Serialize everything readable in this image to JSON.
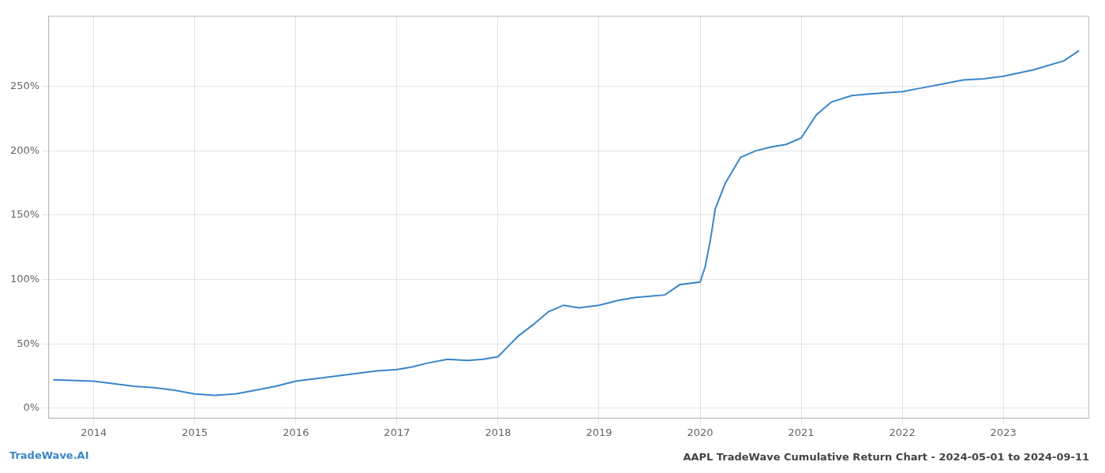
{
  "chart_data": {
    "type": "line",
    "title": "AAPL TradeWave Cumulative Return Chart - 2024-05-01 to 2024-09-11",
    "annotations": [
      "TradeWave.AI"
    ],
    "color": "#3a86c8",
    "grid": true,
    "x": [
      2013.6,
      2014.0,
      2014.2,
      2014.4,
      2014.6,
      2014.8,
      2015.0,
      2015.2,
      2015.4,
      2015.6,
      2015.8,
      2016.0,
      2016.2,
      2016.4,
      2016.6,
      2016.8,
      2017.0,
      2017.15,
      2017.3,
      2017.5,
      2017.7,
      2017.85,
      2018.0,
      2018.1,
      2018.2,
      2018.35,
      2018.5,
      2018.65,
      2018.8,
      2019.0,
      2019.1,
      2019.2,
      2019.35,
      2019.5,
      2019.65,
      2019.8,
      2020.0,
      2020.05,
      2020.1,
      2020.15,
      2020.25,
      2020.4,
      2020.55,
      2020.7,
      2020.85,
      2021.0,
      2021.15,
      2021.3,
      2021.5,
      2021.65,
      2021.8,
      2022.0,
      2022.2,
      2022.4,
      2022.6,
      2022.8,
      2023.0,
      2023.3,
      2023.6,
      2023.75
    ],
    "values": [
      22,
      21,
      19,
      17,
      16,
      14,
      11,
      10,
      11,
      14,
      17,
      21,
      23,
      25,
      27,
      29,
      30,
      32,
      35,
      38,
      37,
      38,
      40,
      48,
      56,
      65,
      75,
      80,
      78,
      80,
      82,
      84,
      86,
      87,
      88,
      96,
      98,
      110,
      130,
      155,
      175,
      195,
      200,
      203,
      205,
      210,
      228,
      238,
      243,
      244,
      245,
      246,
      249,
      252,
      255,
      256,
      258,
      263,
      270,
      278
    ],
    "xlim": [
      2013.55,
      2023.85
    ],
    "xticks": [
      2014,
      2015,
      2016,
      2017,
      2018,
      2019,
      2020,
      2021,
      2022,
      2023
    ],
    "ylim": [
      -8,
      305
    ],
    "yticks": [
      {
        "value": 0,
        "label": "0%"
      },
      {
        "value": 50,
        "label": "50%"
      },
      {
        "value": 100,
        "label": "100%"
      },
      {
        "value": 150,
        "label": "150%"
      },
      {
        "value": 200,
        "label": "200%"
      },
      {
        "value": 250,
        "label": "250%"
      }
    ]
  }
}
